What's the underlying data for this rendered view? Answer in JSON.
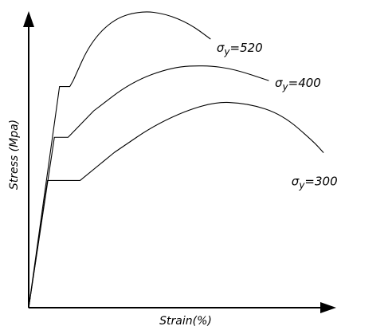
{
  "chart_data": {
    "type": "line",
    "title": "",
    "xlabel": "Strain(%)",
    "ylabel": "Stress (Mpa)",
    "ticks_visible": false,
    "grid": false,
    "x_unit": "%",
    "y_unit": "Mpa",
    "series": [
      {
        "name": "σy=520",
        "label_main": "σ",
        "label_sub": "y",
        "label_value": "=520",
        "yield_stress": 520,
        "points": [
          [
            0,
            0
          ],
          [
            0.09,
            292
          ],
          [
            0.12,
            292
          ],
          [
            0.13,
            300
          ],
          [
            0.18,
            350
          ],
          [
            0.25,
            382
          ],
          [
            0.33,
            392
          ],
          [
            0.4,
            388
          ],
          [
            0.47,
            375
          ],
          [
            0.53,
            355
          ]
        ]
      },
      {
        "name": "σy=400",
        "label_main": "σ",
        "label_sub": "y",
        "label_value": "=400",
        "yield_stress": 400,
        "points": [
          [
            0,
            0
          ],
          [
            0.075,
            225
          ],
          [
            0.115,
            225
          ],
          [
            0.19,
            260
          ],
          [
            0.3,
            298
          ],
          [
            0.42,
            318
          ],
          [
            0.52,
            320
          ],
          [
            0.6,
            315
          ],
          [
            0.7,
            300
          ]
        ]
      },
      {
        "name": "σy=300",
        "label_main": "σ",
        "label_sub": "y",
        "label_value": "=300",
        "yield_stress": 300,
        "points": [
          [
            0,
            0
          ],
          [
            0.055,
            168
          ],
          [
            0.15,
            168
          ],
          [
            0.25,
            205
          ],
          [
            0.38,
            245
          ],
          [
            0.53,
            272
          ],
          [
            0.64,
            270
          ],
          [
            0.74,
            255
          ],
          [
            0.83,
            220
          ],
          [
            0.86,
            205
          ]
        ]
      }
    ],
    "xlim": [
      0,
      1
    ],
    "ylim": [
      0,
      400
    ]
  }
}
